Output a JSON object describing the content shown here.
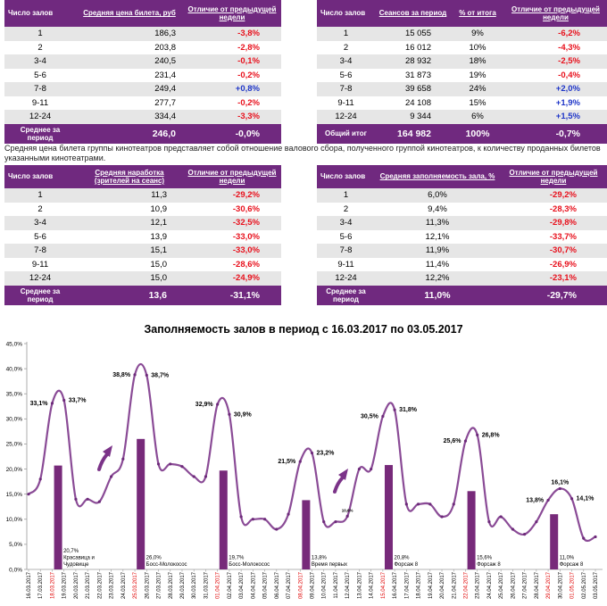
{
  "tables": {
    "price": {
      "headers": [
        "Число залов",
        "Средняя цена билета, руб",
        "Отличие от предыдущей недели"
      ],
      "rows": [
        [
          "1",
          "186,3",
          "-3,8%"
        ],
        [
          "2",
          "203,8",
          "-2,8%"
        ],
        [
          "3-4",
          "240,5",
          "-0,1%"
        ],
        [
          "5-6",
          "231,4",
          "-0,2%"
        ],
        [
          "7-8",
          "249,4",
          "+0,8%"
        ],
        [
          "9-11",
          "277,7",
          "-0,2%"
        ],
        [
          "12-24",
          "334,4",
          "-3,3%"
        ]
      ],
      "footer": [
        "Среднее за период",
        "246,0",
        "-0,0%"
      ]
    },
    "sessions": {
      "headers": [
        "Число залов",
        "Сеансов за период",
        "% от итога",
        "Отличие от предыдущей недели"
      ],
      "rows": [
        [
          "1",
          "15 055",
          "9%",
          "-6,2%"
        ],
        [
          "2",
          "16 012",
          "10%",
          "-4,3%"
        ],
        [
          "3-4",
          "28 932",
          "18%",
          "-2,5%"
        ],
        [
          "5-6",
          "31 873",
          "19%",
          "-0,4%"
        ],
        [
          "7-8",
          "39 658",
          "24%",
          "+2,0%"
        ],
        [
          "9-11",
          "24 108",
          "15%",
          "+1,9%"
        ],
        [
          "12-24",
          "9 344",
          "6%",
          "+1,5%"
        ]
      ],
      "footer": [
        "Общий итог",
        "164 982",
        "100%",
        "-0,7%"
      ]
    },
    "attendance": {
      "headers": [
        "Число залов",
        "Средняя наработка (зрителей на сеанс)",
        "Отличие от предыдущей недели"
      ],
      "rows": [
        [
          "1",
          "11,3",
          "-29,2%"
        ],
        [
          "2",
          "10,9",
          "-30,6%"
        ],
        [
          "3-4",
          "12,1",
          "-32,5%"
        ],
        [
          "5-6",
          "13,9",
          "-33,0%"
        ],
        [
          "7-8",
          "15,1",
          "-33,0%"
        ],
        [
          "9-11",
          "15,0",
          "-28,6%"
        ],
        [
          "12-24",
          "15,0",
          "-24,9%"
        ]
      ],
      "footer": [
        "Среднее за период",
        "13,6",
        "-31,1%"
      ]
    },
    "occupancy": {
      "headers": [
        "Число залов",
        "Средняя заполняемость зала, %",
        "Отличие от предыдущей недели"
      ],
      "rows": [
        [
          "1",
          "6,0%",
          "-29,2%"
        ],
        [
          "2",
          "9,4%",
          "-28,3%"
        ],
        [
          "3-4",
          "11,3%",
          "-29,8%"
        ],
        [
          "5-6",
          "12,1%",
          "-33,7%"
        ],
        [
          "7-8",
          "11,9%",
          "-30,7%"
        ],
        [
          "9-11",
          "11,4%",
          "-26,9%"
        ],
        [
          "12-24",
          "12,2%",
          "-23,1%"
        ]
      ],
      "footer": [
        "Среднее за период",
        "11,0%",
        "-29,7%"
      ]
    }
  },
  "note": "Средняя цена билета группы кинотеатров представляет собой отношение валового сбора, полученного группой кинотеатров, к количеству проданных билетов указанными кинотеатрами.",
  "colors": {
    "accent": "#70297f",
    "negative": "#e8101c",
    "positive": "#1f36c8",
    "bar": "#772a7a",
    "line": "#8a4b96",
    "highlight_date": "#e00000"
  },
  "chart_data": {
    "type": "line",
    "title": "Заполняемость залов в период с 16.03.2017 по 03.05.2017",
    "ylim": [
      0,
      45
    ],
    "y_ticks": [
      {
        "value": 0,
        "label": "0,0%"
      },
      {
        "value": 5,
        "label": "5,0%"
      },
      {
        "value": 10,
        "label": "10,0%"
      },
      {
        "value": 15,
        "label": "15,0%"
      },
      {
        "value": 20,
        "label": "20,0%"
      },
      {
        "value": 25,
        "label": "25,0%"
      },
      {
        "value": 30,
        "label": "30,0%"
      },
      {
        "value": 35,
        "label": "35,0%"
      },
      {
        "value": 40,
        "label": "40,0%"
      },
      {
        "value": 45,
        "label": "45,0%"
      }
    ],
    "x": [
      {
        "date": "16.03.2017",
        "highlight": false
      },
      {
        "date": "17.03.2017",
        "highlight": false
      },
      {
        "date": "18.03.2017",
        "highlight": true
      },
      {
        "date": "19.03.2017",
        "highlight": false
      },
      {
        "date": "20.03.2017",
        "highlight": false
      },
      {
        "date": "21.03.2017",
        "highlight": false
      },
      {
        "date": "22.03.2017",
        "highlight": false
      },
      {
        "date": "23.03.2017",
        "highlight": false
      },
      {
        "date": "24.03.2017",
        "highlight": false
      },
      {
        "date": "25.03.2017",
        "highlight": true
      },
      {
        "date": "26.03.2017",
        "highlight": false
      },
      {
        "date": "27.03.2017",
        "highlight": false
      },
      {
        "date": "28.03.2017",
        "highlight": false
      },
      {
        "date": "29.03.2017",
        "highlight": false
      },
      {
        "date": "30.03.2017",
        "highlight": false
      },
      {
        "date": "31.03.2017",
        "highlight": false
      },
      {
        "date": "01.04.2017",
        "highlight": true
      },
      {
        "date": "02.04.2017",
        "highlight": false
      },
      {
        "date": "03.04.2017",
        "highlight": false
      },
      {
        "date": "04.04.2017",
        "highlight": false
      },
      {
        "date": "05.04.2017",
        "highlight": false
      },
      {
        "date": "06.04.2017",
        "highlight": false
      },
      {
        "date": "07.04.2017",
        "highlight": false
      },
      {
        "date": "08.04.2017",
        "highlight": true
      },
      {
        "date": "09.04.2017",
        "highlight": false
      },
      {
        "date": "10.04.2017",
        "highlight": false
      },
      {
        "date": "11.04.2017",
        "highlight": false
      },
      {
        "date": "12.04.2017",
        "highlight": false
      },
      {
        "date": "13.04.2017",
        "highlight": false
      },
      {
        "date": "14.04.2017",
        "highlight": false
      },
      {
        "date": "15.04.2017",
        "highlight": true
      },
      {
        "date": "16.04.2017",
        "highlight": false
      },
      {
        "date": "17.04.2017",
        "highlight": false
      },
      {
        "date": "18.04.2017",
        "highlight": false
      },
      {
        "date": "19.04.2017",
        "highlight": false
      },
      {
        "date": "20.04.2017",
        "highlight": false
      },
      {
        "date": "21.04.2017",
        "highlight": false
      },
      {
        "date": "22.04.2017",
        "highlight": true
      },
      {
        "date": "23.04.2017",
        "highlight": false
      },
      {
        "date": "24.04.2017",
        "highlight": false
      },
      {
        "date": "25.04.2017",
        "highlight": false
      },
      {
        "date": "26.04.2017",
        "highlight": false
      },
      {
        "date": "27.04.2017",
        "highlight": false
      },
      {
        "date": "28.04.2017",
        "highlight": false
      },
      {
        "date": "29.04.2017",
        "highlight": true
      },
      {
        "date": "30.04.2017",
        "highlight": false
      },
      {
        "date": "01.05.2017",
        "highlight": true
      },
      {
        "date": "02.05.2017",
        "highlight": false
      },
      {
        "date": "03.05.2017",
        "highlight": false
      }
    ],
    "series": [
      {
        "values": [
          15.0,
          18.0,
          33.1,
          33.7,
          14.0,
          14.0,
          13.5,
          18.5,
          22.0,
          38.8,
          38.7,
          21.0,
          21.0,
          20.5,
          18.5,
          18.5,
          32.9,
          30.9,
          10.5,
          10.0,
          10.0,
          8.0,
          11.0,
          21.5,
          23.2,
          9.5,
          9.5,
          10.6,
          20.0,
          20.0,
          30.5,
          31.8,
          13.0,
          13.0,
          13.0,
          10.5,
          13.0,
          25.6,
          26.8,
          9.5,
          10.5,
          8.0,
          7.0,
          9.5,
          13.8,
          16.1,
          14.1,
          6.2,
          6.5
        ]
      }
    ],
    "point_labels": [
      {
        "x_index": 2,
        "text": "33,1%"
      },
      {
        "x_index": 3,
        "text": "33,7%"
      },
      {
        "x_index": 9,
        "text": "38,8%"
      },
      {
        "x_index": 10,
        "text": "38,7%"
      },
      {
        "x_index": 16,
        "text": "32,9%"
      },
      {
        "x_index": 17,
        "text": "30,9%"
      },
      {
        "x_index": 23,
        "text": "21,5%"
      },
      {
        "x_index": 24,
        "text": "23,2%"
      },
      {
        "x_index": 27,
        "text": "10,6%"
      },
      {
        "x_index": 30,
        "text": "30,5%"
      },
      {
        "x_index": 31,
        "text": "31,8%"
      },
      {
        "x_index": 37,
        "text": "25,6%"
      },
      {
        "x_index": 38,
        "text": "26,8%"
      },
      {
        "x_index": 44,
        "text": "13,8%"
      },
      {
        "x_index": 45,
        "text": "16,1%"
      },
      {
        "x_index": 46,
        "text": "14,1%"
      }
    ],
    "bars": [
      {
        "x_index": 2,
        "value": 20.7,
        "value_label": "20,7%",
        "film_lines": [
          "Красавица и",
          "Чудовище"
        ]
      },
      {
        "x_index": 9,
        "value": 26.0,
        "value_label": "26,0%",
        "film_lines": [
          "Босс-Молокосос"
        ]
      },
      {
        "x_index": 16,
        "value": 19.7,
        "value_label": "19,7%",
        "film_lines": [
          "Босс-Молокосос"
        ]
      },
      {
        "x_index": 23,
        "value": 13.8,
        "value_label": "13,8%",
        "film_lines": [
          "Время первых"
        ]
      },
      {
        "x_index": 30,
        "value": 20.8,
        "value_label": "20,8%",
        "film_lines": [
          "Форсаж 8"
        ]
      },
      {
        "x_index": 37,
        "value": 15.6,
        "value_label": "15,6%",
        "film_lines": [
          "Форсаж 8"
        ]
      },
      {
        "x_index": 44,
        "value": 11.0,
        "value_label": "11,0%",
        "film_lines": [
          "Форсаж 8"
        ]
      }
    ]
  }
}
